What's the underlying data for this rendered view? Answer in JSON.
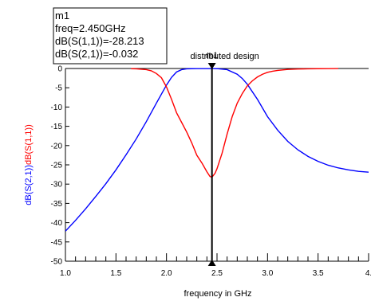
{
  "chart_data": {
    "type": "line",
    "xlabel": "frequency in GHz",
    "ylabel_parts": [
      {
        "text": "dB(S(2,1))",
        "color": "#0000ff"
      },
      {
        "text": "dB(S(1,1))",
        "color": "#ff0000"
      }
    ],
    "xlim": [
      1.0,
      4.0
    ],
    "ylim": [
      -50,
      0
    ],
    "x_ticks": [
      1.0,
      1.5,
      2.0,
      2.5,
      3.0,
      3.5,
      4.0
    ],
    "x_tick_labels": [
      "1.0",
      "1.5",
      "2.0",
      "2.5",
      "3.0",
      "3.5",
      "4."
    ],
    "y_ticks": [
      0,
      -5,
      -10,
      -15,
      -20,
      -25,
      -30,
      -35,
      -40,
      -45,
      -50
    ],
    "y_tick_labels": [
      "0",
      "-5",
      "-10",
      "-15",
      "-20",
      "-25",
      "-30",
      "-35",
      "-40",
      "-45",
      "-50"
    ],
    "grid": false,
    "series": [
      {
        "name": "dB(S(2,1))",
        "color": "#0000ff",
        "x": [
          1.0,
          1.1,
          1.2,
          1.3,
          1.4,
          1.5,
          1.6,
          1.7,
          1.8,
          1.9,
          2.0,
          2.05,
          2.1,
          2.15,
          2.2,
          2.25,
          2.3,
          2.4,
          2.45,
          2.5,
          2.6,
          2.7,
          2.75,
          2.8,
          2.9,
          3.0,
          3.1,
          3.2,
          3.3,
          3.4,
          3.5,
          3.6,
          3.7,
          3.8,
          3.9,
          4.0
        ],
        "y": [
          -42.2,
          -39.4,
          -36.4,
          -33.2,
          -29.9,
          -26.3,
          -22.4,
          -18.3,
          -13.8,
          -9.0,
          -4.3,
          -2.3,
          -0.9,
          -0.3,
          -0.1,
          -0.05,
          -0.03,
          -0.03,
          -0.03,
          -0.05,
          -0.3,
          -1.5,
          -2.6,
          -4.1,
          -8.0,
          -12.5,
          -16.0,
          -18.9,
          -21.1,
          -22.8,
          -24.1,
          -25.1,
          -25.8,
          -26.3,
          -26.7,
          -26.9
        ]
      },
      {
        "name": "dB(S(1,1))",
        "color": "#ff0000",
        "x": [
          1.65,
          1.7,
          1.8,
          1.85,
          1.9,
          1.95,
          2.0,
          2.05,
          2.1,
          2.15,
          2.2,
          2.25,
          2.3,
          2.35,
          2.4,
          2.43,
          2.45,
          2.48,
          2.5,
          2.55,
          2.6,
          2.65,
          2.7,
          2.75,
          2.8,
          2.85,
          2.9,
          2.95,
          3.0,
          3.05,
          3.1,
          3.2,
          3.3,
          3.4,
          3.5,
          3.6,
          3.7
        ],
        "y": [
          -0.05,
          -0.1,
          -0.3,
          -0.6,
          -1.3,
          -2.4,
          -4.8,
          -8.0,
          -11.5,
          -14.0,
          -16.5,
          -19.3,
          -22.5,
          -24.5,
          -26.8,
          -28.0,
          -28.2,
          -27.2,
          -26.0,
          -22.0,
          -17.0,
          -12.5,
          -9.0,
          -6.5,
          -4.5,
          -3.2,
          -2.2,
          -1.5,
          -1.0,
          -0.7,
          -0.5,
          -0.25,
          -0.15,
          -0.08,
          -0.05,
          -0.03,
          -0.02
        ]
      }
    ],
    "marker": {
      "name": "m1",
      "x": 2.45,
      "lines": [
        "m1",
        "freq=2.450GHz",
        "dB(S(1,1))=-28.213",
        "dB(S(2,1))=-0.032"
      ],
      "tag": "m1"
    },
    "annotation": "distributed design"
  }
}
